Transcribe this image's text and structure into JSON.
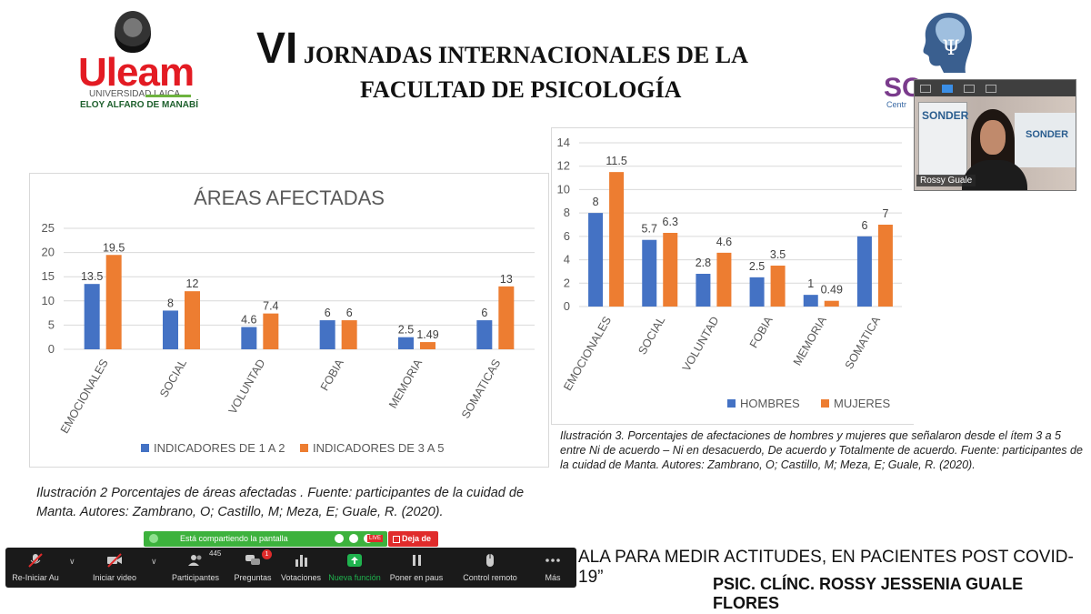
{
  "header": {
    "title_line1_big": "VI",
    "title_line1_rest": "JORNADAS INTERNACIONALES DE LA",
    "title_line2": "FACULTAD DE PSICOLOGÍA",
    "left_logo": {
      "name": "Uleam",
      "sub1": "UNIVERSIDAD LAICA",
      "sub2": "ELOY ALFARO DE MANABÍ"
    },
    "right_logo": {
      "name": "SO",
      "sub": "Centr"
    }
  },
  "chart_data": [
    {
      "type": "bar",
      "title": "ÁREAS AFECTADAS",
      "categories": [
        "EMOCIONALES",
        "SOCIAL",
        "VOLUNTAD",
        "FOBIA",
        "MEMORIA",
        "SOMATICAS"
      ],
      "series": [
        {
          "name": "INDICADORES DE 1 A 2",
          "values": [
            13.5,
            8,
            4.6,
            6,
            2.5,
            6
          ],
          "color": "#4472c4"
        },
        {
          "name": "INDICADORES DE 3 A 5",
          "values": [
            19.5,
            12,
            7.4,
            6,
            1.49,
            13
          ],
          "color": "#ed7d31"
        }
      ],
      "y_ticks": [
        "0",
        "5",
        "10",
        "15",
        "20",
        "25"
      ],
      "ylim": [
        0,
        25
      ],
      "legend": "bottom"
    },
    {
      "type": "bar",
      "categories": [
        "EMOCIONALES",
        "SOCIAL",
        "VOLUNTAD",
        "FOBIA",
        "MEMORIA",
        "SOMATICA"
      ],
      "series": [
        {
          "name": "HOMBRES",
          "values": [
            8,
            5.7,
            2.8,
            2.5,
            1,
            6
          ],
          "color": "#4472c4"
        },
        {
          "name": "MUJERES",
          "values": [
            11.5,
            6.3,
            4.6,
            3.5,
            0.49,
            7
          ],
          "color": "#ed7d31"
        }
      ],
      "y_ticks": [
        "0",
        "2",
        "4",
        "6",
        "8",
        "10",
        "12",
        "14"
      ],
      "ylim": [
        0,
        14
      ],
      "legend": "bottom"
    }
  ],
  "captions": {
    "left": "Ilustración 2 Porcentajes de áreas afectadas . Fuente: participantes de la cuidad de Manta. Autores: Zambrano, O; Castillo, M; Meza, E; Guale, R. (2020).",
    "right": "Ilustración 3. Porcentajes de afectaciones de hombres y mujeres que señalaron desde el ítem 3 a 5 entre Ni de acuerdo – Ni en desacuerdo, De acuerdo y Totalmente de acuerdo. Fuente: participantes de la cuidad de Manta. Autores: Zambrano, O; Castillo, M; Meza, E; Guale, R. (2020)."
  },
  "video": {
    "participant_name": "Rossy Guale",
    "poster_text": "SONDER",
    "poster2_text": "SONDER"
  },
  "share_banner": {
    "label": "Está compartiendo la pantalla",
    "live": "LIVE",
    "stop_label": "Deja de"
  },
  "toolbar": {
    "items": [
      {
        "label": "Re-Iniciar Au",
        "icon": "muted-microphone-icon"
      },
      {
        "label": "Iniciar video",
        "icon": "video-off-icon"
      },
      {
        "label": "Participantes",
        "icon": "participants-icon",
        "count": "445"
      },
      {
        "label": "Preguntas",
        "icon": "q-and-a-icon",
        "badge": "1"
      },
      {
        "label": "Votaciones",
        "icon": "polling-icon"
      },
      {
        "label": "Nueva función",
        "icon": "share-screen-icon"
      },
      {
        "label": "Poner en paus",
        "icon": "pause-icon"
      },
      {
        "label": "Control remoto",
        "icon": "mouse-icon"
      },
      {
        "label": "Más",
        "icon": "more-icon"
      }
    ],
    "accent": "#1fb34e"
  },
  "footer": {
    "line1": "ALA PARA MEDIR ACTITUDES, EN PACIENTES POST COVID-19”",
    "line2": "PSIC. CLÍNC. ROSSY JESSENIA GUALE FLORES"
  }
}
